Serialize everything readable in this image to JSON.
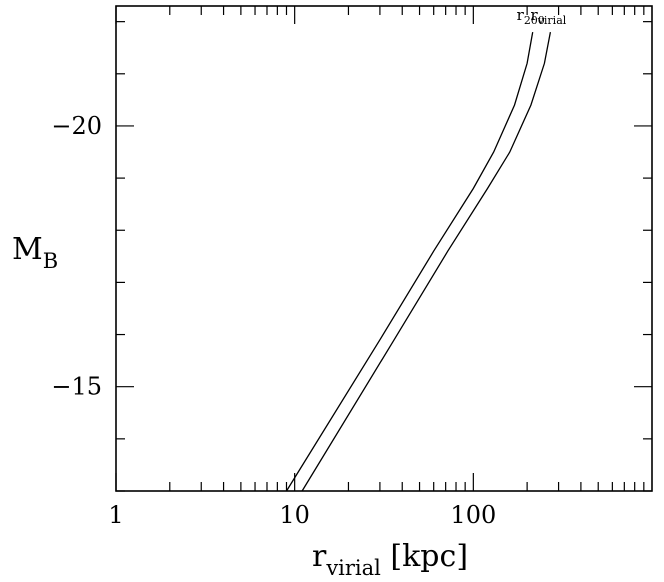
{
  "chart_data": {
    "type": "line",
    "x_scale": "log",
    "xlim": [
      1,
      1000
    ],
    "ylim": [
      -13,
      -22.3
    ],
    "y_inverted": true,
    "xlabel": {
      "main": "r",
      "sub": "virial",
      "suffix": " [kpc]"
    },
    "ylabel": {
      "main": "M",
      "sub": "B"
    },
    "x_ticks": [
      {
        "value": 1,
        "label": "1"
      },
      {
        "value": 10,
        "label": "10"
      },
      {
        "value": 100,
        "label": "100"
      }
    ],
    "y_ticks": [
      {
        "value": -20,
        "label": "−20"
      },
      {
        "value": -15,
        "label": "−15"
      }
    ],
    "grid": false,
    "legend": "none",
    "series": [
      {
        "name": {
          "main": "r",
          "sub": "200"
        },
        "points": [
          [
            9.0,
            -13.0
          ],
          [
            30.0,
            -15.9
          ],
          [
            60.0,
            -17.6
          ],
          [
            100.0,
            -18.8
          ],
          [
            130.0,
            -19.5
          ],
          [
            170.0,
            -20.4
          ],
          [
            200.0,
            -21.2
          ],
          [
            215.0,
            -21.8
          ]
        ]
      },
      {
        "name": {
          "main": "r",
          "sub": "virial"
        },
        "points": [
          [
            11.0,
            -13.0
          ],
          [
            36.0,
            -15.9
          ],
          [
            72.0,
            -17.6
          ],
          [
            120.0,
            -18.8
          ],
          [
            160.0,
            -19.5
          ],
          [
            210.0,
            -20.4
          ],
          [
            250.0,
            -21.2
          ],
          [
            270.0,
            -21.8
          ]
        ]
      }
    ]
  }
}
